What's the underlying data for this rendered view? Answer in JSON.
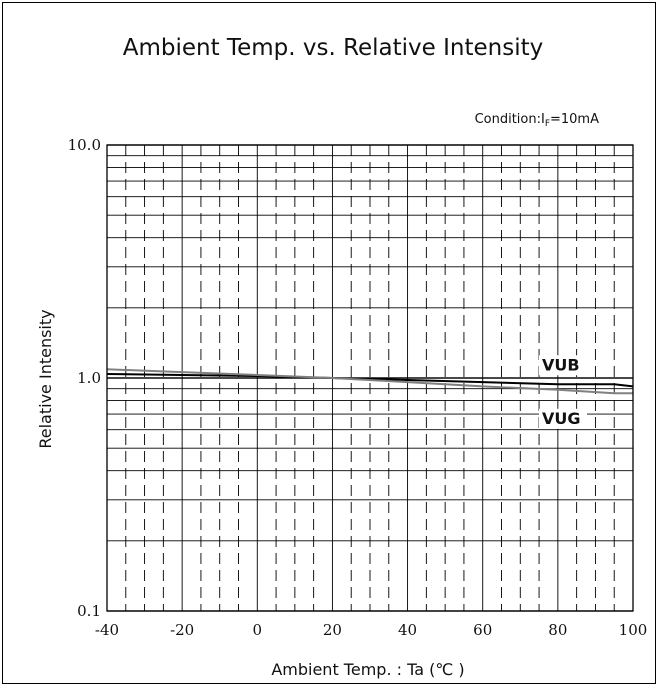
{
  "chart_data": {
    "type": "line",
    "title": "Ambient Temp. vs. Relative Intensity",
    "condition": {
      "prefix": "Condition:I",
      "subscript": "F",
      "suffix": "=10mA"
    },
    "xlabel": "Ambient Temp. : Ta (℃ )",
    "ylabel": "Relative Intensity",
    "xlim": [
      -40,
      100
    ],
    "ylim": [
      0.1,
      10.0
    ],
    "y_scale": "log",
    "grid": true,
    "x_ticks": [
      -40,
      -20,
      0,
      20,
      40,
      60,
      80,
      100
    ],
    "x_tick_labels": [
      "-40",
      "-20",
      "0",
      "20",
      "40",
      "60",
      "80",
      "100"
    ],
    "y_ticks": [
      0.1,
      1.0,
      10.0
    ],
    "y_tick_labels": [
      "0.1",
      "1.0",
      "10.0"
    ],
    "series": [
      {
        "name": "VUB",
        "color": "#000000",
        "x": [
          -40,
          -20,
          0,
          20,
          40,
          60,
          80,
          95,
          100
        ],
        "y": [
          1.04,
          1.03,
          1.02,
          1.0,
          0.98,
          0.96,
          0.94,
          0.94,
          0.92
        ]
      },
      {
        "name": "VUG",
        "color": "#808080",
        "x": [
          -40,
          -20,
          0,
          20,
          40,
          60,
          80,
          95,
          100
        ],
        "y": [
          1.09,
          1.06,
          1.03,
          1.0,
          0.96,
          0.92,
          0.89,
          0.86,
          0.86
        ]
      }
    ]
  }
}
